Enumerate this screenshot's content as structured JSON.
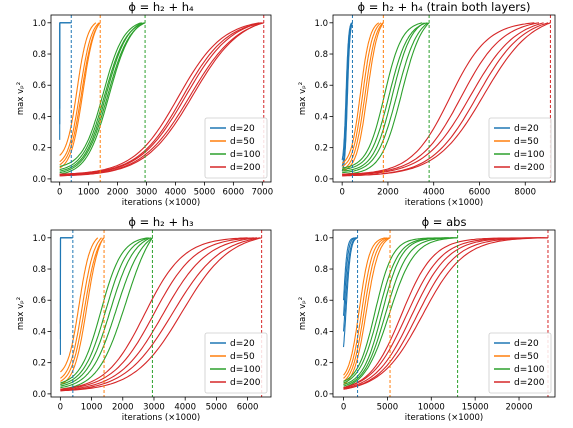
{
  "colors": {
    "d20": "#1f77b4",
    "d50": "#ff7f0e",
    "d100": "#2ca02c",
    "d200": "#d62728"
  },
  "chart_data": [
    {
      "type": "line",
      "title": "ϕ = h₂ + h₄",
      "xlabel": "iterations (×1000)",
      "ylabel": "max vₚ²",
      "xlim": [
        -300,
        7300
      ],
      "ylim": [
        -0.02,
        1.05
      ],
      "xticks": [
        0,
        1000,
        2000,
        3000,
        4000,
        5000,
        6000,
        7000
      ],
      "yticks": [
        0.0,
        0.2,
        0.4,
        0.6,
        0.8,
        1.0
      ],
      "legend_position": "lower-right",
      "series": [
        {
          "name": "d=20",
          "color_key": "d20",
          "end": 400,
          "runs": [
            {
              "x0": 0,
              "x1": 400,
              "y0": 0.25,
              "mid": 0.0,
              "steep": 1.3
            },
            {
              "x0": 0,
              "x1": 380,
              "y0": 0.35,
              "mid": 0.08,
              "steep": 1.3
            },
            {
              "x0": 0,
              "x1": 360,
              "y0": 0.45,
              "mid": 0.16,
              "steep": 1.3
            }
          ]
        },
        {
          "name": "d=50",
          "color_key": "d50",
          "end": 1400,
          "runs": [
            {
              "x0": 0,
              "x1": 1380,
              "y0": 0.07,
              "mid": 800,
              "steep": 0.0048
            },
            {
              "x0": 0,
              "x1": 1400,
              "y0": 0.09,
              "mid": 760,
              "steep": 0.0048
            },
            {
              "x0": 0,
              "x1": 1360,
              "y0": 0.11,
              "mid": 700,
              "steep": 0.005
            },
            {
              "x0": 0,
              "x1": 1250,
              "y0": 0.15,
              "mid": 600,
              "steep": 0.0055
            }
          ]
        },
        {
          "name": "d=100",
          "color_key": "d100",
          "end": 2950,
          "runs": [
            {
              "x0": 0,
              "x1": 2900,
              "y0": 0.03,
              "mid": 1700,
              "steep": 0.0026
            },
            {
              "x0": 0,
              "x1": 2950,
              "y0": 0.04,
              "mid": 1650,
              "steep": 0.0026
            },
            {
              "x0": 0,
              "x1": 2850,
              "y0": 0.05,
              "mid": 1600,
              "steep": 0.0027
            },
            {
              "x0": 0,
              "x1": 2950,
              "y0": 0.06,
              "mid": 1550,
              "steep": 0.0027
            },
            {
              "x0": 0,
              "x1": 2800,
              "y0": 0.08,
              "mid": 1500,
              "steep": 0.0028
            }
          ]
        },
        {
          "name": "d=200",
          "color_key": "d200",
          "end": 7050,
          "runs": [
            {
              "x0": 0,
              "x1": 7000,
              "y0": 0.02,
              "mid": 4600,
              "steep": 0.0012
            },
            {
              "x0": 0,
              "x1": 7050,
              "y0": 0.02,
              "mid": 4500,
              "steep": 0.0012
            },
            {
              "x0": 0,
              "x1": 6950,
              "y0": 0.025,
              "mid": 4350,
              "steep": 0.00125
            },
            {
              "x0": 0,
              "x1": 7000,
              "y0": 0.03,
              "mid": 4250,
              "steep": 0.0013
            },
            {
              "x0": 0,
              "x1": 6900,
              "y0": 0.03,
              "mid": 4100,
              "steep": 0.0013
            }
          ]
        }
      ]
    },
    {
      "type": "line",
      "title": "ϕ = h₂ + h₄ (train both layers)",
      "xlabel": "iterations (×1000)",
      "ylabel": "max vₚ²",
      "xlim": [
        -400,
        9300
      ],
      "ylim": [
        -0.02,
        1.05
      ],
      "xticks": [
        0,
        2000,
        4000,
        6000,
        8000
      ],
      "yticks": [
        0.0,
        0.2,
        0.4,
        0.6,
        0.8,
        1.0
      ],
      "legend_position": "lower-right",
      "series": [
        {
          "name": "d=20",
          "color_key": "d20",
          "end": 450,
          "runs": [
            {
              "x0": 0,
              "x1": 450,
              "y0": 0.05,
              "mid": 230,
              "steep": 0.018
            },
            {
              "x0": 0,
              "x1": 430,
              "y0": 0.08,
              "mid": 200,
              "steep": 0.018
            },
            {
              "x0": 0,
              "x1": 410,
              "y0": 0.12,
              "mid": 170,
              "steep": 0.018
            }
          ]
        },
        {
          "name": "d=50",
          "color_key": "d50",
          "end": 1800,
          "runs": [
            {
              "x0": 0,
              "x1": 1800,
              "y0": 0.05,
              "mid": 1100,
              "steep": 0.0042
            },
            {
              "x0": 0,
              "x1": 1780,
              "y0": 0.06,
              "mid": 1000,
              "steep": 0.0042
            },
            {
              "x0": 0,
              "x1": 1700,
              "y0": 0.08,
              "mid": 900,
              "steep": 0.0045
            },
            {
              "x0": 0,
              "x1": 1600,
              "y0": 0.1,
              "mid": 800,
              "steep": 0.0048
            }
          ]
        },
        {
          "name": "d=100",
          "color_key": "d100",
          "end": 3800,
          "runs": [
            {
              "x0": 0,
              "x1": 3800,
              "y0": 0.03,
              "mid": 2600,
              "steep": 0.0022
            },
            {
              "x0": 0,
              "x1": 3750,
              "y0": 0.04,
              "mid": 2400,
              "steep": 0.0022
            },
            {
              "x0": 0,
              "x1": 3600,
              "y0": 0.05,
              "mid": 2200,
              "steep": 0.0024
            },
            {
              "x0": 0,
              "x1": 3700,
              "y0": 0.06,
              "mid": 2050,
              "steep": 0.0024
            },
            {
              "x0": 0,
              "x1": 3500,
              "y0": 0.07,
              "mid": 1850,
              "steep": 0.0026
            }
          ]
        },
        {
          "name": "d=200",
          "color_key": "d200",
          "end": 9100,
          "runs": [
            {
              "x0": 0,
              "x1": 9100,
              "y0": 0.02,
              "mid": 6200,
              "steep": 0.00095
            },
            {
              "x0": 0,
              "x1": 9000,
              "y0": 0.02,
              "mid": 5900,
              "steep": 0.001
            },
            {
              "x0": 0,
              "x1": 8800,
              "y0": 0.025,
              "mid": 5600,
              "steep": 0.001
            },
            {
              "x0": 0,
              "x1": 8600,
              "y0": 0.03,
              "mid": 5200,
              "steep": 0.0011
            },
            {
              "x0": 0,
              "x1": 8400,
              "y0": 0.03,
              "mid": 4700,
              "steep": 0.0012
            }
          ]
        }
      ]
    },
    {
      "type": "line",
      "title": "ϕ = h₂ + h₃",
      "xlabel": "iterations (×1000)",
      "ylabel": "max vₚ²",
      "xlim": [
        -300,
        6750
      ],
      "ylim": [
        -0.02,
        1.05
      ],
      "xticks": [
        0,
        1000,
        2000,
        3000,
        4000,
        5000,
        6000
      ],
      "yticks": [
        0.0,
        0.2,
        0.4,
        0.6,
        0.8,
        1.0
      ],
      "legend_position": "lower-right",
      "series": [
        {
          "name": "d=20",
          "color_key": "d20",
          "end": 400,
          "runs": [
            {
              "x0": 0,
              "x1": 400,
              "y0": 0.25,
              "mid": 0.0,
              "steep": 1.3
            },
            {
              "x0": 0,
              "x1": 380,
              "y0": 0.35,
              "mid": 0.08,
              "steep": 1.3
            },
            {
              "x0": 0,
              "x1": 360,
              "y0": 0.45,
              "mid": 0.16,
              "steep": 1.3
            }
          ]
        },
        {
          "name": "d=50",
          "color_key": "d50",
          "end": 1400,
          "runs": [
            {
              "x0": 0,
              "x1": 1380,
              "y0": 0.06,
              "mid": 850,
              "steep": 0.0048
            },
            {
              "x0": 0,
              "x1": 1400,
              "y0": 0.08,
              "mid": 780,
              "steep": 0.0048
            },
            {
              "x0": 0,
              "x1": 1320,
              "y0": 0.1,
              "mid": 700,
              "steep": 0.005
            },
            {
              "x0": 0,
              "x1": 1200,
              "y0": 0.14,
              "mid": 600,
              "steep": 0.0055
            }
          ]
        },
        {
          "name": "d=100",
          "color_key": "d100",
          "end": 2950,
          "runs": [
            {
              "x0": 0,
              "x1": 2950,
              "y0": 0.03,
              "mid": 2100,
              "steep": 0.0022
            },
            {
              "x0": 0,
              "x1": 2950,
              "y0": 0.04,
              "mid": 1800,
              "steep": 0.0024
            },
            {
              "x0": 0,
              "x1": 2900,
              "y0": 0.05,
              "mid": 1600,
              "steep": 0.0026
            },
            {
              "x0": 0,
              "x1": 2850,
              "y0": 0.06,
              "mid": 1450,
              "steep": 0.0028
            },
            {
              "x0": 0,
              "x1": 2800,
              "y0": 0.07,
              "mid": 1300,
              "steep": 0.003
            }
          ]
        },
        {
          "name": "d=200",
          "color_key": "d200",
          "end": 6450,
          "runs": [
            {
              "x0": 0,
              "x1": 6450,
              "y0": 0.02,
              "mid": 3900,
              "steep": 0.0013
            },
            {
              "x0": 0,
              "x1": 6400,
              "y0": 0.02,
              "mid": 3600,
              "steep": 0.0013
            },
            {
              "x0": 0,
              "x1": 6300,
              "y0": 0.025,
              "mid": 3300,
              "steep": 0.0014
            },
            {
              "x0": 0,
              "x1": 6200,
              "y0": 0.03,
              "mid": 3000,
              "steep": 0.0015
            },
            {
              "x0": 0,
              "x1": 6000,
              "y0": 0.03,
              "mid": 2700,
              "steep": 0.0016
            }
          ]
        }
      ]
    },
    {
      "type": "line",
      "title": "ϕ = abs",
      "xlabel": "iterations (×1000)",
      "ylabel": "max vₚ²",
      "xlim": [
        -1200,
        24100
      ],
      "ylim": [
        -0.02,
        1.05
      ],
      "xticks": [
        0,
        5000,
        10000,
        15000,
        20000
      ],
      "yticks": [
        0.0,
        0.2,
        0.4,
        0.6,
        0.8,
        1.0
      ],
      "legend_position": "lower-right",
      "series": [
        {
          "name": "d=20",
          "color_key": "d20",
          "end": 1600,
          "runs": [
            {
              "x0": 0,
              "x1": 1600,
              "y0": 0.3,
              "mid": 300,
              "steep": 0.004
            },
            {
              "x0": 0,
              "x1": 1550,
              "y0": 0.4,
              "mid": 200,
              "steep": 0.004
            },
            {
              "x0": 0,
              "x1": 1500,
              "y0": 0.5,
              "mid": 100,
              "steep": 0.0045
            },
            {
              "x0": 0,
              "x1": 1450,
              "y0": 0.6,
              "mid": 0,
              "steep": 0.005
            }
          ]
        },
        {
          "name": "d=50",
          "color_key": "d50",
          "end": 5300,
          "runs": [
            {
              "x0": 0,
              "x1": 5300,
              "y0": 0.06,
              "mid": 2600,
              "steep": 0.0014
            },
            {
              "x0": 0,
              "x1": 5200,
              "y0": 0.08,
              "mid": 2350,
              "steep": 0.0015
            },
            {
              "x0": 0,
              "x1": 5000,
              "y0": 0.1,
              "mid": 2100,
              "steep": 0.0016
            },
            {
              "x0": 0,
              "x1": 4800,
              "y0": 0.12,
              "mid": 1800,
              "steep": 0.0017
            }
          ]
        },
        {
          "name": "d=100",
          "color_key": "d100",
          "end": 13000,
          "runs": [
            {
              "x0": 0,
              "x1": 13000,
              "y0": 0.04,
              "mid": 5200,
              "steep": 0.0007
            },
            {
              "x0": 0,
              "x1": 12800,
              "y0": 0.05,
              "mid": 4800,
              "steep": 0.0008
            },
            {
              "x0": 0,
              "x1": 12500,
              "y0": 0.06,
              "mid": 4400,
              "steep": 0.0009
            },
            {
              "x0": 0,
              "x1": 13000,
              "y0": 0.07,
              "mid": 4000,
              "steep": 0.0009
            },
            {
              "x0": 0,
              "x1": 12000,
              "y0": 0.08,
              "mid": 3600,
              "steep": 0.001
            }
          ]
        },
        {
          "name": "d=200",
          "color_key": "d200",
          "end": 23300,
          "runs": [
            {
              "x0": 0,
              "x1": 23300,
              "y0": 0.03,
              "mid": 9000,
              "steep": 0.00042
            },
            {
              "x0": 0,
              "x1": 23300,
              "y0": 0.03,
              "mid": 8400,
              "steep": 0.00045
            },
            {
              "x0": 0,
              "x1": 23000,
              "y0": 0.035,
              "mid": 7800,
              "steep": 0.00048
            },
            {
              "x0": 0,
              "x1": 22800,
              "y0": 0.04,
              "mid": 7200,
              "steep": 0.0005
            },
            {
              "x0": 0,
              "x1": 22500,
              "y0": 0.04,
              "mid": 6600,
              "steep": 0.00055
            }
          ]
        }
      ]
    }
  ]
}
